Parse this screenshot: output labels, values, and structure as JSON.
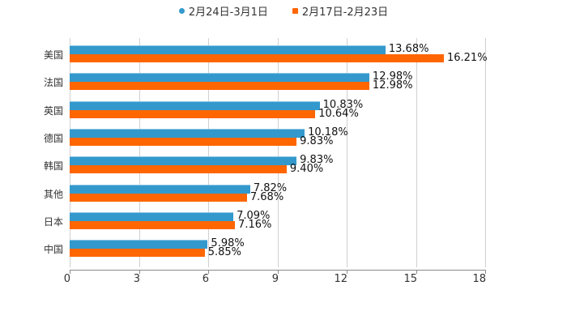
{
  "chart_data": {
    "type": "bar",
    "orientation": "horizontal",
    "title": "",
    "xlabel": "",
    "ylabel": "",
    "categories": [
      "美国",
      "法国",
      "英国",
      "德国",
      "韩国",
      "其他",
      "日本",
      "中国"
    ],
    "series": [
      {
        "name": "2月24日-3月1日",
        "color": "#3399cc",
        "values": [
          13.68,
          12.98,
          10.83,
          10.18,
          9.83,
          7.82,
          7.09,
          5.98
        ],
        "labels": [
          "13.68%",
          "12.98%",
          "10.83%",
          "10.18%",
          "9.83%",
          "7.82%",
          "7.09%",
          "5.98%"
        ]
      },
      {
        "name": "2月17日-2月23日",
        "color": "#ff6600",
        "values": [
          16.21,
          12.98,
          10.64,
          9.83,
          9.4,
          7.68,
          7.16,
          5.85
        ],
        "labels": [
          "16.21%",
          "12.98%",
          "10.64%",
          "9.83%",
          "9.40%",
          "7.68%",
          "7.16%",
          "5.85%"
        ]
      }
    ],
    "xlim": [
      0,
      18
    ],
    "xticks": [
      "0",
      "3",
      "6",
      "9",
      "12",
      "15",
      "18"
    ],
    "grid": true,
    "legend_position": "top"
  },
  "legend": {
    "items": [
      {
        "label": "2月24日-3月1日",
        "color": "#3399cc"
      },
      {
        "label": "2月17日-2月23日",
        "color": "#ff6600"
      }
    ]
  }
}
